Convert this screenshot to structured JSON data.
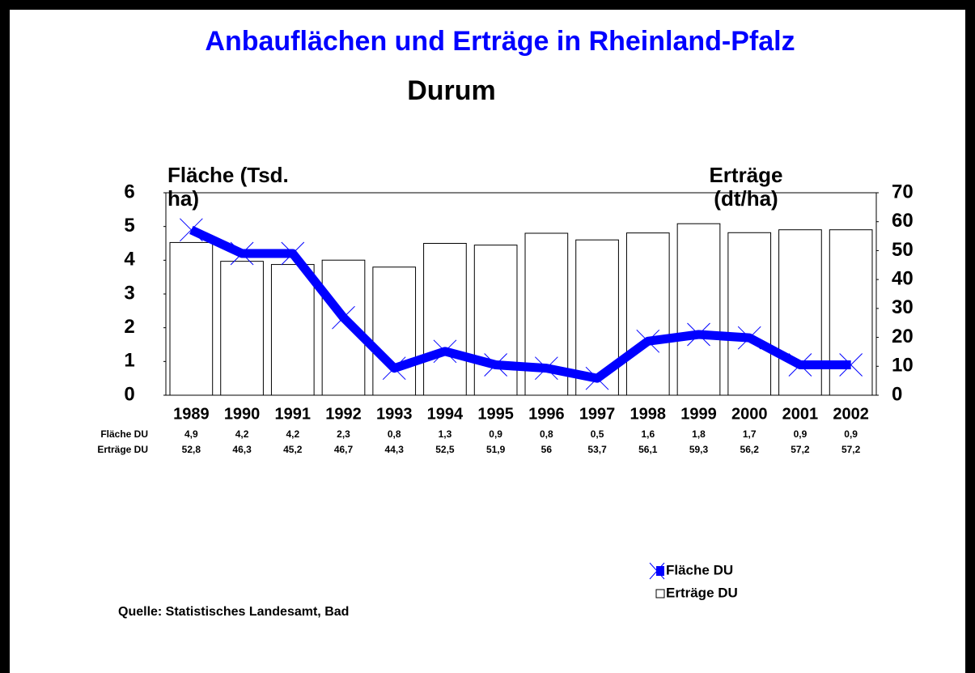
{
  "chart_data": {
    "type": "bar",
    "title": "Anbauflächen und Erträge in Rheinland-Pfalz",
    "subtitle": "Durum",
    "y_label": "Fläche (Tsd. ha)",
    "y2_label": "Erträge (dt/ha)",
    "categories": [
      "1989",
      "1990",
      "1991",
      "1992",
      "1993",
      "1994",
      "1995",
      "1996",
      "1997",
      "1998",
      "1999",
      "2000",
      "2001",
      "2002"
    ],
    "series": [
      {
        "name": "Fläche DU",
        "type": "line",
        "color": "#0000ff",
        "axis": "y",
        "values": [
          4.9,
          4.2,
          4.2,
          2.3,
          0.8,
          1.3,
          0.9,
          0.8,
          0.5,
          1.6,
          1.8,
          1.7,
          0.9,
          0.9
        ],
        "value_labels": [
          "4,9",
          "4,2",
          "4,2",
          "2,3",
          "0,8",
          "1,3",
          "0,9",
          "0,8",
          "0,5",
          "1,6",
          "1,8",
          "1,7",
          "0,9",
          "0,9"
        ]
      },
      {
        "name": "Erträge DU",
        "type": "bar",
        "color": "#ffffff",
        "axis": "y2",
        "values": [
          52.8,
          46.3,
          45.2,
          46.7,
          44.3,
          52.5,
          51.9,
          56,
          53.7,
          56.1,
          59.3,
          56.2,
          57.2,
          57.2
        ],
        "value_labels": [
          "52,8",
          "46,3",
          "45,2",
          "46,7",
          "44,3",
          "52,5",
          "51,9",
          "56",
          "53,7",
          "56,1",
          "59,3",
          "56,2",
          "57,2",
          "57,2"
        ]
      }
    ],
    "ylim": [
      0,
      6
    ],
    "yticks": [
      0,
      1,
      2,
      3,
      4,
      5,
      6
    ],
    "y2lim": [
      0,
      70
    ],
    "y2ticks": [
      0,
      10,
      20,
      30,
      40,
      50,
      60,
      70
    ],
    "source": "Quelle: Statistisches Landesamt, Bad"
  }
}
